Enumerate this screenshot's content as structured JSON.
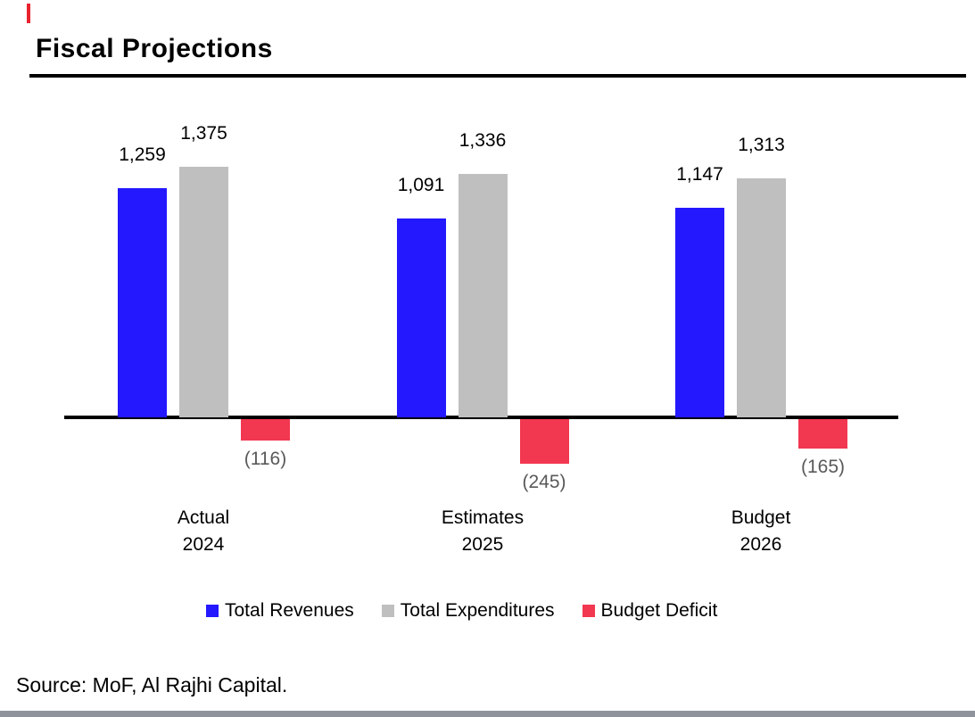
{
  "header": {
    "title": "Fiscal Projections"
  },
  "chart_data": {
    "type": "bar",
    "title": "Fiscal Projections",
    "categories": [
      {
        "label": "Actual",
        "year": "2024"
      },
      {
        "label": "Estimates",
        "year": "2025"
      },
      {
        "label": "Budget",
        "year": "2026"
      }
    ],
    "series": [
      {
        "name": "Total Revenues",
        "color": "#2318fe",
        "values": [
          1259,
          1091,
          1147
        ],
        "value_labels": [
          "1,259",
          "1,091",
          "1,147"
        ]
      },
      {
        "name": "Total Expenditures",
        "color": "#bfbfbf",
        "values": [
          1375,
          1336,
          1313
        ],
        "value_labels": [
          "1,375",
          "1,336",
          "1,313"
        ]
      },
      {
        "name": "Budget Deficit",
        "color": "#f23750",
        "values": [
          -116,
          -245,
          -165
        ],
        "value_labels": [
          "(116)",
          "(245)",
          "(165)"
        ]
      }
    ],
    "xlabel": "",
    "ylabel": "",
    "ylim": [
      -300,
      1500
    ],
    "grid": false,
    "legend_position": "bottom",
    "axis_line_color": "#000000",
    "positive_label_color": "#000000",
    "negative_label_color": "#595959"
  },
  "footer": {
    "source_note": "Source: MoF, Al Rajhi Capital."
  },
  "decorations": {
    "accent_color": "#e8232e",
    "title_rule_color": "#000000",
    "bottom_strip_color": "#8f949c"
  }
}
